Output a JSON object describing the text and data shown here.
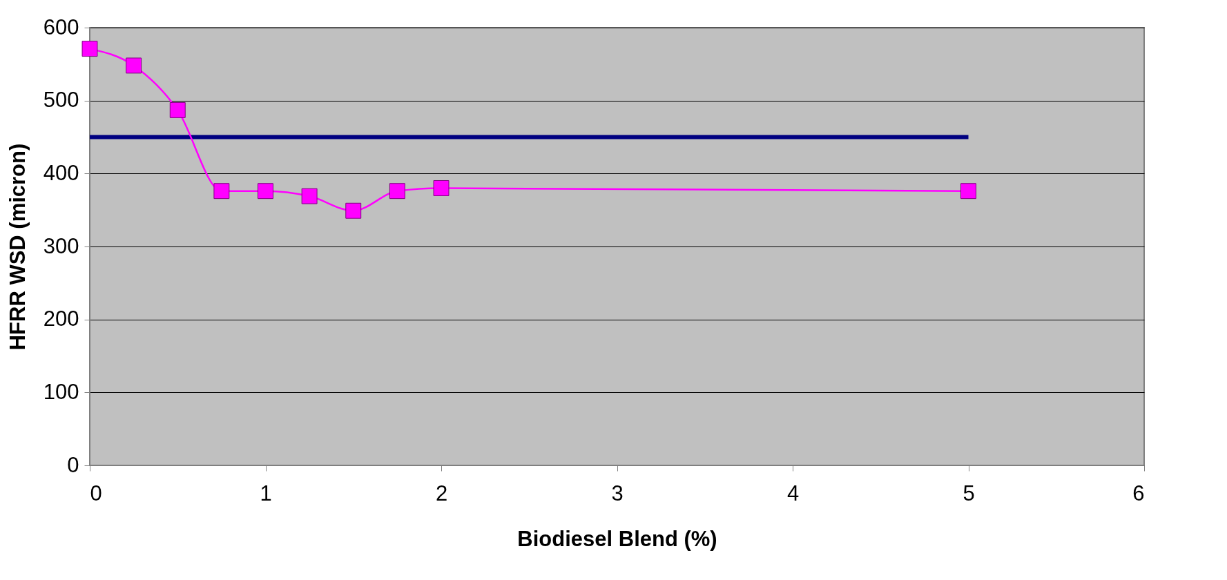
{
  "chart_data": {
    "type": "line",
    "xlabel": "Biodiesel Blend (%)",
    "ylabel": "HFRR WSD (micron)",
    "xlim": [
      0,
      6
    ],
    "xticks": [
      0,
      1,
      2,
      3,
      4,
      5,
      6
    ],
    "ylim": [
      0,
      600
    ],
    "yticks": [
      0,
      100,
      200,
      300,
      400,
      500,
      600
    ],
    "grid": "y",
    "marker": "square",
    "line_style": "solid",
    "series": [
      {
        "color": "#000080",
        "x": [
          0,
          5
        ],
        "values": [
          450,
          450
        ],
        "marker": "none"
      },
      {
        "color": "#ff00ff",
        "x": [
          0,
          0.25,
          0.5,
          0.75,
          1,
          1.25,
          1.5,
          1.75,
          2,
          5
        ],
        "values": [
          571,
          548,
          487,
          376,
          376,
          369,
          349,
          376,
          380,
          376
        ]
      }
    ]
  }
}
